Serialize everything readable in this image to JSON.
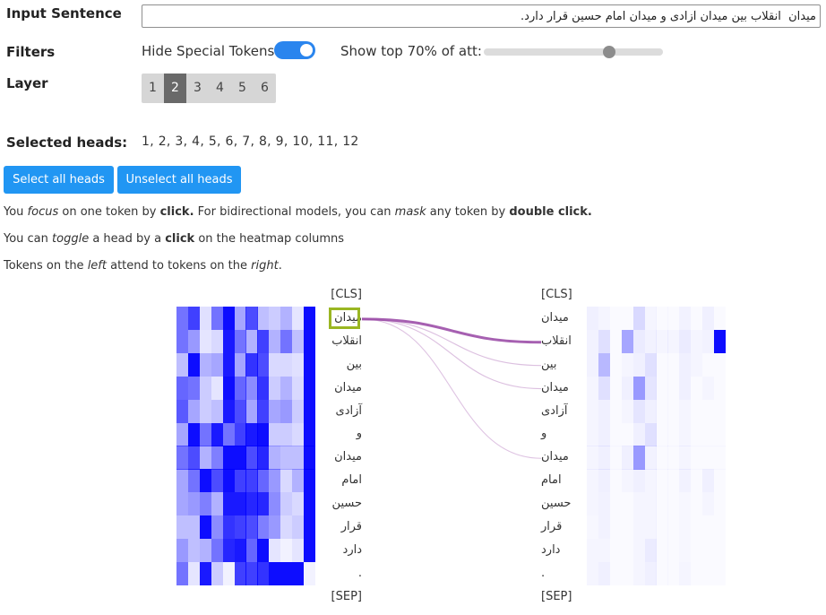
{
  "labels": {
    "input_sentence": "Input Sentence",
    "filters": "Filters",
    "layer": "Layer",
    "selected_heads": "Selected heads:"
  },
  "input": {
    "value": "میدان  انقلاب بین میدان آزادی و میدان امام حسین قرار دارد."
  },
  "filters": {
    "hide_special_tokens_label": "Hide Special Tokens",
    "hide_special_tokens_on": true,
    "show_top_label": "Show top 70% of att:",
    "show_top_value": 70
  },
  "layers": {
    "options": [
      "1",
      "2",
      "3",
      "4",
      "5",
      "6"
    ],
    "selected": "2"
  },
  "selected_heads": {
    "text": "1, 2, 3, 4, 5, 6, 7, 8, 9, 10, 11, 12"
  },
  "buttons": {
    "select_all": "Select all heads",
    "unselect_all": "Unselect all heads"
  },
  "instructions": {
    "line1": {
      "p1": "You ",
      "focus": "focus",
      "p2": " on one token by ",
      "click": "click.",
      "p3": " For bidirectional models, you can ",
      "mask": "mask",
      "p4": " any token by ",
      "dblclick": "double click."
    },
    "line2": {
      "p1": "You can ",
      "toggle": "toggle",
      "p2": " a head by a ",
      "click": "click",
      "p3": " on the heatmap columns"
    },
    "line3": {
      "p1": "Tokens on the ",
      "left": "left",
      "p2": " attend to tokens on the ",
      "right": "right",
      "p3": "."
    }
  },
  "tokens": [
    "[CLS]",
    "میدان",
    "انقلاب",
    "بین",
    "میدان",
    "آزادی",
    "و",
    "میدان",
    "امام",
    "حسین",
    "قرار",
    "دارد",
    ".",
    "[SEP]"
  ],
  "focused_token_index": 1,
  "attention_lines": [
    {
      "to": 2,
      "weight": 0.9
    },
    {
      "to": 3,
      "weight": 0.15
    },
    {
      "to": 4,
      "weight": 0.15
    },
    {
      "to": 7,
      "weight": 0.12
    }
  ],
  "heatmap_left": [
    [
      0.55,
      0.75,
      0.12,
      0.55,
      0.95,
      0.35,
      0.7,
      0.25,
      0.2,
      0.3,
      0.1,
      0.95
    ],
    [
      0.55,
      0.4,
      0.1,
      0.15,
      0.9,
      0.55,
      0.3,
      0.75,
      0.3,
      0.55,
      0.25,
      0.95
    ],
    [
      0.25,
      0.95,
      0.3,
      0.35,
      0.9,
      0.35,
      0.8,
      0.7,
      0.15,
      0.15,
      0.12,
      0.95
    ],
    [
      0.6,
      0.55,
      0.2,
      0.1,
      0.95,
      0.6,
      0.45,
      0.8,
      0.2,
      0.3,
      0.15,
      0.95
    ],
    [
      0.65,
      0.35,
      0.2,
      0.25,
      0.9,
      0.7,
      0.35,
      0.75,
      0.35,
      0.4,
      0.2,
      0.95
    ],
    [
      0.35,
      0.95,
      0.55,
      0.9,
      0.55,
      0.75,
      0.9,
      0.95,
      0.2,
      0.2,
      0.15,
      0.95
    ],
    [
      0.55,
      0.7,
      0.3,
      0.5,
      0.95,
      0.95,
      0.7,
      0.85,
      0.3,
      0.25,
      0.25,
      0.95
    ],
    [
      0.35,
      0.55,
      0.95,
      0.7,
      0.95,
      0.75,
      0.75,
      0.6,
      0.4,
      0.15,
      0.3,
      0.95
    ],
    [
      0.35,
      0.4,
      0.5,
      0.3,
      0.9,
      0.9,
      0.85,
      0.85,
      0.45,
      0.2,
      0.15,
      0.95
    ],
    [
      0.25,
      0.25,
      0.95,
      0.45,
      0.8,
      0.75,
      0.7,
      0.5,
      0.4,
      0.15,
      0.2,
      0.95
    ],
    [
      0.4,
      0.25,
      0.3,
      0.55,
      0.85,
      0.9,
      0.6,
      0.95,
      0.1,
      0.05,
      0.1,
      0.95
    ],
    [
      0.55,
      0.1,
      0.9,
      0.2,
      0.05,
      0.75,
      0.75,
      0.8,
      0.95,
      0.95,
      0.95,
      0.05
    ]
  ],
  "heatmap_right": [
    [
      0.06,
      0.04,
      0.02,
      0.02,
      0.15,
      0.04,
      0.02,
      0.02,
      0.05,
      0.02,
      0.06,
      0.02
    ],
    [
      0.05,
      0.12,
      0.02,
      0.35,
      0.08,
      0.05,
      0.04,
      0.04,
      0.08,
      0.04,
      0.05,
      0.95
    ],
    [
      0.05,
      0.28,
      0.02,
      0.04,
      0.06,
      0.12,
      0.02,
      0.02,
      0.06,
      0.04,
      0.02,
      0.02
    ],
    [
      0.04,
      0.12,
      0.02,
      0.06,
      0.4,
      0.1,
      0.02,
      0.02,
      0.06,
      0.02,
      0.04,
      0.02
    ],
    [
      0.04,
      0.06,
      0.02,
      0.04,
      0.1,
      0.06,
      0.02,
      0.02,
      0.04,
      0.02,
      0.02,
      0.02
    ],
    [
      0.04,
      0.06,
      0.02,
      0.02,
      0.06,
      0.12,
      0.02,
      0.02,
      0.04,
      0.02,
      0.02,
      0.02
    ],
    [
      0.04,
      0.06,
      0.02,
      0.06,
      0.4,
      0.05,
      0.02,
      0.02,
      0.04,
      0.02,
      0.02,
      0.02
    ],
    [
      0.04,
      0.06,
      0.02,
      0.04,
      0.06,
      0.04,
      0.02,
      0.02,
      0.05,
      0.02,
      0.06,
      0.02
    ],
    [
      0.04,
      0.05,
      0.02,
      0.02,
      0.04,
      0.04,
      0.02,
      0.02,
      0.03,
      0.02,
      0.04,
      0.02
    ],
    [
      0.03,
      0.05,
      0.02,
      0.02,
      0.04,
      0.04,
      0.02,
      0.02,
      0.03,
      0.02,
      0.02,
      0.02
    ],
    [
      0.04,
      0.04,
      0.02,
      0.02,
      0.04,
      0.08,
      0.02,
      0.02,
      0.03,
      0.02,
      0.02,
      0.02
    ],
    [
      0.04,
      0.06,
      0.02,
      0.02,
      0.04,
      0.06,
      0.02,
      0.02,
      0.04,
      0.02,
      0.02,
      0.02
    ]
  ],
  "colors": {
    "accent_blue": "#2196f3",
    "toggle_on": "#2a85ee",
    "heat_base": "#0000ff",
    "attention_line": "#9a4aa6",
    "focus_border": "#9ab622",
    "active_layer": "#696969"
  }
}
